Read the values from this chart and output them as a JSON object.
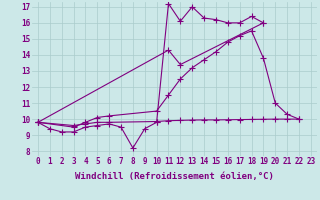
{
  "background_color": "#cce8e8",
  "grid_color": "#aacccc",
  "line_color": "#800080",
  "marker": "+",
  "markersize": 4,
  "linewidth": 0.8,
  "xlabel": "Windchill (Refroidissement éolien,°C)",
  "xlabel_fontsize": 6.5,
  "tick_fontsize": 5.5,
  "xlim": [
    -0.5,
    23.5
  ],
  "ylim": [
    7.7,
    17.3
  ],
  "yticks": [
    8,
    9,
    10,
    11,
    12,
    13,
    14,
    15,
    16,
    17
  ],
  "xticks": [
    0,
    1,
    2,
    3,
    4,
    5,
    6,
    7,
    8,
    9,
    10,
    11,
    12,
    13,
    14,
    15,
    16,
    17,
    18,
    19,
    20,
    21,
    22,
    23
  ],
  "series": [
    {
      "x": [
        0,
        1,
        2,
        3,
        4,
        5,
        6,
        7,
        8,
        9,
        10,
        11,
        12,
        13,
        14,
        15,
        16,
        17,
        18,
        19
      ],
      "y": [
        9.8,
        9.4,
        9.2,
        9.2,
        9.5,
        9.6,
        9.7,
        9.5,
        8.2,
        9.4,
        9.8,
        17.2,
        16.1,
        17.0,
        16.3,
        16.2,
        16.0,
        16.0,
        16.4,
        16.0
      ]
    },
    {
      "x": [
        0,
        11,
        12,
        19
      ],
      "y": [
        9.8,
        14.3,
        13.4,
        16.0
      ]
    },
    {
      "x": [
        0,
        3,
        4,
        5,
        6,
        10,
        11,
        12,
        13,
        14,
        15,
        16,
        17,
        18,
        19,
        20,
        21,
        22
      ],
      "y": [
        9.8,
        9.5,
        9.8,
        10.1,
        10.2,
        10.5,
        11.5,
        12.5,
        13.2,
        13.7,
        14.2,
        14.8,
        15.2,
        15.5,
        13.8,
        11.0,
        10.3,
        10.0
      ]
    },
    {
      "x": [
        0,
        3,
        4,
        5,
        6,
        10,
        11,
        12,
        13,
        14,
        15,
        16,
        17,
        18,
        19,
        20,
        21,
        22
      ],
      "y": [
        9.8,
        9.6,
        9.7,
        9.8,
        9.8,
        9.85,
        9.9,
        9.92,
        9.94,
        9.95,
        9.95,
        9.96,
        9.97,
        9.98,
        9.99,
        10.0,
        10.0,
        10.0
      ]
    }
  ]
}
